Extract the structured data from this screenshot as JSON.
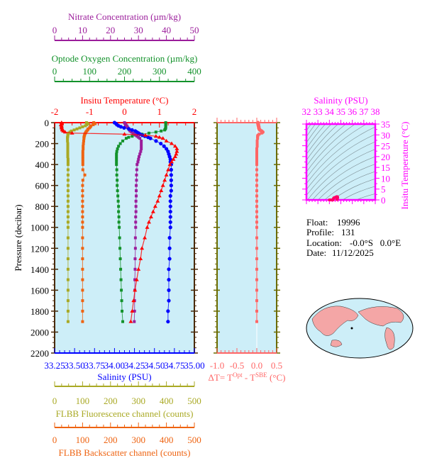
{
  "colors": {
    "nitrate": "#9b1d9b",
    "oxygen": "#13922b",
    "temperature": "#ff0000",
    "salinity": "#0000ff",
    "fluorescence": "#a9a924",
    "backscatter": "#ee6311",
    "deltaT": "#ff6666",
    "ts": "#ff00ff",
    "pressure": "#4a2a0a",
    "plot_bg": "#cdeef8"
  },
  "chart_data": [
    {
      "type": "line",
      "ylabel": "Pressure (decibar)",
      "ylim": [
        0,
        2200
      ],
      "y_inverted": true,
      "y_ticks": [
        "0",
        "200",
        "400",
        "600",
        "800",
        "1000",
        "1200",
        "1400",
        "1600",
        "1800",
        "2000",
        "2200"
      ],
      "pressure": [
        0,
        10,
        20,
        30,
        40,
        50,
        60,
        70,
        80,
        90,
        100,
        110,
        120,
        130,
        140,
        150,
        175,
        200,
        225,
        250,
        275,
        300,
        325,
        350,
        375,
        400,
        450,
        500,
        550,
        600,
        650,
        700,
        750,
        800,
        850,
        900,
        950,
        1000,
        1100,
        1200,
        1300,
        1400,
        1500,
        1600,
        1700,
        1800,
        1900
      ],
      "axes": [
        {
          "key": "nitrate",
          "label": "Nitrate Concentration (µm/kg)",
          "range": [
            0,
            50
          ],
          "ticks": [
            "0",
            "10",
            "20",
            "30",
            "40",
            "50"
          ]
        },
        {
          "key": "oxygen",
          "label": "Optode Oxygen Concentration (µm/kg)",
          "range": [
            0,
            400
          ],
          "ticks": [
            "0",
            "100",
            "200",
            "300",
            "400"
          ]
        },
        {
          "key": "temperature",
          "label": "Insitu Temperature (°C)",
          "range": [
            -2,
            2
          ],
          "ticks": [
            "-2",
            "-1",
            "0",
            "1",
            "2"
          ]
        },
        {
          "key": "salinity",
          "label": "Salinity (PSU)",
          "range": [
            33.25,
            35.0
          ],
          "ticks": [
            "33.25",
            "33.50",
            "33.75",
            "34.00",
            "34.25",
            "34.50",
            "34.75",
            "35.00"
          ]
        },
        {
          "key": "fluorescence",
          "label": "FLBB Fluorescence channel (counts)",
          "range": [
            0,
            500
          ],
          "ticks": [
            "0",
            "100",
            "200",
            "300",
            "400",
            "500"
          ]
        },
        {
          "key": "backscatter",
          "label": "FLBB Backscatter channel (counts)",
          "range": [
            0,
            500
          ],
          "ticks": [
            "0",
            "100",
            "200",
            "300",
            "400",
            "500"
          ]
        }
      ],
      "series": {
        "temperature": [
          -1.8,
          -1.8,
          -1.82,
          -1.8,
          -1.8,
          -1.8,
          -1.78,
          -1.78,
          -1.75,
          -1.7,
          -1.5,
          0.0,
          0.6,
          0.9,
          1.0,
          1.1,
          1.2,
          1.35,
          1.45,
          1.5,
          1.5,
          1.48,
          1.45,
          1.4,
          1.35,
          1.3,
          1.25,
          1.2,
          1.15,
          1.1,
          1.05,
          1.0,
          0.95,
          0.88,
          0.82,
          0.76,
          0.7,
          0.65,
          0.58,
          0.5,
          0.46,
          0.4,
          0.35,
          0.3,
          0.26,
          0.22,
          0.18
        ],
        "salinity": [
          34.0,
          34.02,
          34.03,
          34.05,
          34.08,
          34.12,
          34.18,
          34.22,
          34.26,
          34.28,
          34.3,
          34.32,
          34.35,
          34.38,
          34.42,
          34.45,
          34.52,
          34.58,
          34.62,
          34.65,
          34.67,
          34.68,
          34.69,
          34.7,
          34.7,
          34.71,
          34.71,
          34.71,
          34.71,
          34.71,
          34.71,
          34.7,
          34.7,
          34.7,
          34.7,
          34.7,
          34.7,
          34.7,
          34.69,
          34.69,
          34.69,
          34.68,
          34.68,
          34.68,
          34.68,
          34.67,
          34.67
        ],
        "oxygen": [
          318,
          318,
          318,
          318,
          318,
          318,
          317,
          315,
          305,
          290,
          270,
          250,
          235,
          222,
          212,
          205,
          195,
          188,
          183,
          180,
          178,
          177,
          177,
          177,
          177,
          177,
          178,
          178,
          179,
          179,
          180,
          181,
          182,
          183,
          183,
          184,
          184,
          185,
          186,
          187,
          188,
          189,
          190,
          191,
          192,
          193,
          195
        ],
        "nitrate": [
          25,
          25.2,
          25.5,
          25.8,
          26,
          26.2,
          26.5,
          26.8,
          27,
          27.5,
          28,
          28.5,
          29,
          29.5,
          30,
          30.5,
          31,
          31,
          31,
          31,
          30.8,
          30.5,
          30.2,
          30,
          29.8,
          29.5,
          29.4,
          29.3,
          29.3,
          29.2,
          29.2,
          29.2,
          29.1,
          29.1,
          29.1,
          29,
          29,
          29,
          28.9,
          28.9,
          28.8,
          28.8,
          28.7,
          28.7,
          28.6,
          28.6,
          28.5
        ],
        "fluorescence": [
          114,
          120,
          115,
          110,
          100,
          90,
          80,
          70,
          60,
          55,
          50,
          48,
          47,
          47,
          46,
          46,
          46,
          47,
          47,
          47,
          47,
          47,
          47,
          48,
          48,
          48,
          48,
          48,
          48,
          48,
          48,
          48,
          48,
          48,
          48,
          48,
          48,
          48,
          48,
          48,
          48,
          48,
          48,
          48,
          48,
          48,
          48
        ],
        "backscatter": [
          140,
          145,
          138,
          130,
          128,
          125,
          120,
          118,
          115,
          112,
          110,
          108,
          107,
          106,
          105,
          105,
          104,
          103,
          102,
          102,
          101,
          101,
          101,
          101,
          101,
          101,
          101,
          108,
          101,
          100,
          100,
          100,
          100,
          100,
          100,
          100,
          100,
          100,
          100,
          100,
          100,
          100,
          100,
          100,
          100,
          100,
          100
        ]
      }
    },
    {
      "type": "line",
      "xlabel_prefix": "ΔT= T",
      "xlabel_sup1": "Opt",
      "xlabel_mid": " - T",
      "xlabel_sup2": "SBE",
      "xlabel_suffix": " (°C)",
      "xlim": [
        -1.0,
        0.5
      ],
      "x_ticks": [
        "-1.0",
        "-0.5",
        "0.0",
        "0.5"
      ],
      "ylim": [
        0,
        2200
      ],
      "series": {
        "deltaT": [
          0.03,
          0.03,
          0.04,
          0.04,
          0.05,
          0.05,
          0.06,
          0.08,
          0.12,
          0.15,
          0.12,
          0.06,
          0.03,
          0.02,
          0.02,
          0.02,
          0.01,
          0.01,
          0.01,
          0.0,
          0.0,
          0.0,
          0.0,
          0.0,
          0.0,
          0.0,
          0.0,
          0.0,
          0.0,
          0.0,
          0.0,
          0.0,
          0.0,
          0.0,
          0.0,
          0.0,
          0.0,
          0.0,
          0.0,
          0.0,
          0.0,
          0.0,
          0.0,
          0.0,
          0.0,
          0.0,
          0.0
        ]
      }
    },
    {
      "type": "scatter",
      "xlabel": "Salinity (PSU)",
      "ylabel": "Insitu Temperature (°C)",
      "xlim": [
        32,
        38
      ],
      "ylim": [
        0,
        35
      ],
      "x_ticks": [
        "32",
        "33",
        "34",
        "35",
        "36",
        "37",
        "38"
      ],
      "y_ticks": [
        "0",
        "5",
        "10",
        "15",
        "20",
        "25",
        "30",
        "35"
      ],
      "density_contours": true
    }
  ],
  "info": {
    "float_label": "Float:",
    "float": "19996",
    "profile_label": "Profile:",
    "profile": "131",
    "location_label": "Location:",
    "location": "-0.0°S   0.0°E",
    "date_label": "Date:",
    "date": "11/12/2025"
  }
}
